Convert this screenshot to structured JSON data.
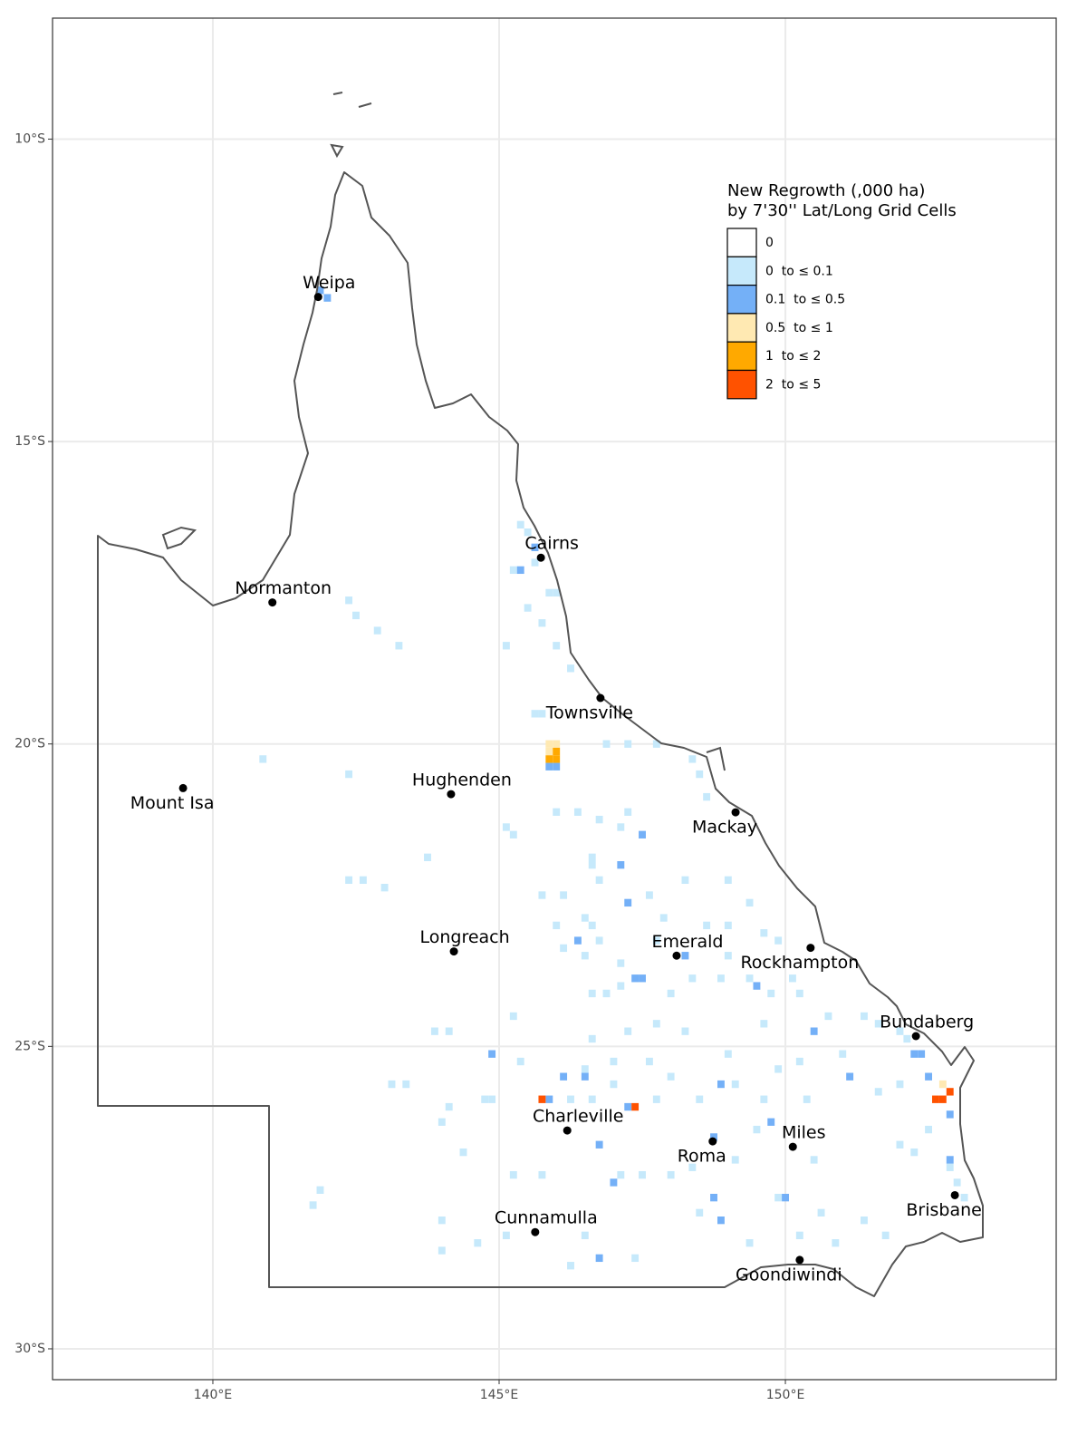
{
  "chart_data": {
    "type": "map",
    "xlim": [
      137.2,
      154.73
    ],
    "ylim": [
      -30.51,
      -8.0
    ],
    "xticks": [
      {
        "value": 140,
        "label": "140°E"
      },
      {
        "value": 145,
        "label": "145°E"
      },
      {
        "value": 150,
        "label": "150°E"
      }
    ],
    "yticks": [
      {
        "value": -10,
        "label": "10°S"
      },
      {
        "value": -15,
        "label": "15°S"
      },
      {
        "value": -20,
        "label": "20°S"
      },
      {
        "value": -25,
        "label": "25°S"
      },
      {
        "value": -30,
        "label": "30°S"
      }
    ],
    "grid": true,
    "legend": {
      "title": [
        "New Regrowth (,000 ha)",
        "by 7'30'' Lat/Long Grid Cells"
      ],
      "position": "top-right"
    },
    "series": [
      {
        "name": "0",
        "color": "#ffffff"
      },
      {
        "name": "0  to ≤ 0.1",
        "color": "#c6e9fb",
        "cells": [
          [
            145.375,
            -16.375
          ],
          [
            145.5,
            -16.5
          ],
          [
            145.25,
            -17.125
          ],
          [
            145.625,
            -17.0
          ],
          [
            145.875,
            -17.5
          ],
          [
            146.0,
            -17.5
          ],
          [
            145.5,
            -17.75
          ],
          [
            145.75,
            -18.0
          ],
          [
            145.125,
            -18.375
          ],
          [
            146.0,
            -18.375
          ],
          [
            146.25,
            -18.75
          ],
          [
            142.375,
            -17.625
          ],
          [
            142.5,
            -17.875
          ],
          [
            142.875,
            -18.125
          ],
          [
            143.25,
            -18.375
          ],
          [
            145.625,
            -19.5
          ],
          [
            145.75,
            -19.5
          ],
          [
            146.875,
            -20.0
          ],
          [
            147.25,
            -20.0
          ],
          [
            147.75,
            -20.0
          ],
          [
            148.375,
            -20.25
          ],
          [
            148.5,
            -20.5
          ],
          [
            148.625,
            -20.875
          ],
          [
            146.0,
            -21.125
          ],
          [
            146.375,
            -21.125
          ],
          [
            146.75,
            -21.25
          ],
          [
            147.25,
            -21.125
          ],
          [
            147.125,
            -21.375
          ],
          [
            145.125,
            -21.375
          ],
          [
            145.25,
            -21.5
          ],
          [
            146.625,
            -22.0
          ],
          [
            146.625,
            -21.875
          ],
          [
            146.75,
            -22.25
          ],
          [
            146.125,
            -22.5
          ],
          [
            147.625,
            -22.5
          ],
          [
            148.25,
            -22.25
          ],
          [
            149.0,
            -22.25
          ],
          [
            149.375,
            -22.625
          ],
          [
            146.0,
            -23.0
          ],
          [
            146.5,
            -22.875
          ],
          [
            146.625,
            -23.0
          ],
          [
            146.75,
            -23.25
          ],
          [
            147.875,
            -22.875
          ],
          [
            148.625,
            -23.0
          ],
          [
            149.0,
            -23.0
          ],
          [
            149.625,
            -23.125
          ],
          [
            149.875,
            -23.25
          ],
          [
            146.125,
            -23.375
          ],
          [
            146.5,
            -23.5
          ],
          [
            147.125,
            -23.625
          ],
          [
            147.75,
            -23.25
          ],
          [
            149.0,
            -23.5
          ],
          [
            149.375,
            -23.875
          ],
          [
            150.125,
            -23.875
          ],
          [
            146.625,
            -24.125
          ],
          [
            146.875,
            -24.125
          ],
          [
            147.125,
            -24.0
          ],
          [
            148.0,
            -24.125
          ],
          [
            148.375,
            -23.875
          ],
          [
            148.875,
            -23.875
          ],
          [
            149.75,
            -24.125
          ],
          [
            150.25,
            -24.125
          ],
          [
            150.75,
            -24.5
          ],
          [
            151.375,
            -24.5
          ],
          [
            151.625,
            -24.625
          ],
          [
            152.0,
            -24.75
          ],
          [
            152.125,
            -24.875
          ],
          [
            151.0,
            -25.125
          ],
          [
            146.625,
            -24.875
          ],
          [
            147.25,
            -24.75
          ],
          [
            147.75,
            -24.625
          ],
          [
            148.25,
            -24.75
          ],
          [
            149.0,
            -25.125
          ],
          [
            149.625,
            -24.625
          ],
          [
            146.5,
            -25.375
          ],
          [
            147.0,
            -25.25
          ],
          [
            147.625,
            -25.25
          ],
          [
            148.0,
            -25.5
          ],
          [
            149.125,
            -25.625
          ],
          [
            149.875,
            -25.375
          ],
          [
            150.25,
            -25.25
          ],
          [
            146.25,
            -25.875
          ],
          [
            146.625,
            -25.875
          ],
          [
            147.0,
            -25.625
          ],
          [
            147.75,
            -25.875
          ],
          [
            148.5,
            -25.875
          ],
          [
            149.625,
            -25.875
          ],
          [
            150.375,
            -25.875
          ],
          [
            151.625,
            -25.75
          ],
          [
            152.0,
            -25.625
          ],
          [
            152.5,
            -26.375
          ],
          [
            152.0,
            -26.625
          ],
          [
            152.25,
            -26.75
          ],
          [
            153.0,
            -27.25
          ],
          [
            153.125,
            -27.5
          ],
          [
            144.75,
            -25.875
          ],
          [
            144.875,
            -25.875
          ],
          [
            145.375,
            -25.25
          ],
          [
            144.125,
            -26.0
          ],
          [
            144.0,
            -26.25
          ],
          [
            143.125,
            -25.625
          ],
          [
            143.375,
            -25.625
          ],
          [
            143.875,
            -24.75
          ],
          [
            144.125,
            -24.75
          ],
          [
            145.25,
            -24.5
          ],
          [
            144.375,
            -26.75
          ],
          [
            145.25,
            -27.125
          ],
          [
            145.75,
            -27.125
          ],
          [
            147.125,
            -27.125
          ],
          [
            147.5,
            -27.125
          ],
          [
            148.0,
            -27.125
          ],
          [
            148.375,
            -27.0
          ],
          [
            149.125,
            -26.875
          ],
          [
            149.5,
            -26.375
          ],
          [
            150.5,
            -26.875
          ],
          [
            149.875,
            -27.5
          ],
          [
            150.625,
            -27.75
          ],
          [
            151.375,
            -27.875
          ],
          [
            144.0,
            -27.875
          ],
          [
            144.625,
            -28.25
          ],
          [
            145.125,
            -28.125
          ],
          [
            146.5,
            -28.125
          ],
          [
            144.0,
            -28.375
          ],
          [
            146.25,
            -28.625
          ],
          [
            147.375,
            -28.5
          ],
          [
            148.5,
            -27.75
          ],
          [
            149.375,
            -28.25
          ],
          [
            150.25,
            -28.125
          ],
          [
            150.875,
            -28.25
          ],
          [
            141.875,
            -27.375
          ],
          [
            141.75,
            -27.625
          ],
          [
            142.375,
            -22.25
          ],
          [
            142.625,
            -22.25
          ],
          [
            143.0,
            -22.375
          ],
          [
            143.75,
            -21.875
          ],
          [
            140.875,
            -20.25
          ],
          [
            142.375,
            -20.5
          ],
          [
            145.75,
            -22.5
          ],
          [
            152.875,
            -27.0
          ],
          [
            151.75,
            -28.125
          ]
        ]
      },
      {
        "name": "0.1  to ≤ 0.5",
        "color": "#74b0f7",
        "cells": [
          [
            141.875,
            -12.5
          ],
          [
            142.0,
            -12.625
          ],
          [
            145.625,
            -16.75
          ],
          [
            145.375,
            -17.125
          ],
          [
            145.875,
            -20.375
          ],
          [
            146.0,
            -20.375
          ],
          [
            147.5,
            -21.5
          ],
          [
            147.25,
            -22.625
          ],
          [
            147.125,
            -22.0
          ],
          [
            146.375,
            -23.25
          ],
          [
            148.25,
            -23.5
          ],
          [
            147.375,
            -23.875
          ],
          [
            147.5,
            -23.875
          ],
          [
            149.5,
            -24.0
          ],
          [
            150.5,
            -24.75
          ],
          [
            152.25,
            -25.125
          ],
          [
            152.375,
            -25.125
          ],
          [
            144.875,
            -25.125
          ],
          [
            145.875,
            -25.875
          ],
          [
            146.125,
            -25.5
          ],
          [
            146.5,
            -25.5
          ],
          [
            147.25,
            -26.0
          ],
          [
            148.875,
            -25.625
          ],
          [
            149.75,
            -26.25
          ],
          [
            151.125,
            -25.5
          ],
          [
            152.5,
            -25.5
          ],
          [
            152.875,
            -26.125
          ],
          [
            152.875,
            -26.875
          ],
          [
            146.75,
            -26.625
          ],
          [
            147.0,
            -27.25
          ],
          [
            148.75,
            -27.5
          ],
          [
            148.875,
            -27.875
          ],
          [
            150.0,
            -27.5
          ],
          [
            146.75,
            -28.5
          ],
          [
            148.75,
            -26.5
          ]
        ]
      },
      {
        "name": "0.5  to ≤ 1",
        "color": "#ffe9b2",
        "cells": [
          [
            145.875,
            -20.0
          ],
          [
            146.0,
            -20.0
          ],
          [
            145.875,
            -20.125
          ],
          [
            152.75,
            -25.625
          ]
        ]
      },
      {
        "name": "1  to ≤ 2",
        "color": "#ffa900",
        "cells": [
          [
            146.0,
            -20.125
          ],
          [
            146.0,
            -20.25
          ],
          [
            145.875,
            -20.25
          ]
        ]
      },
      {
        "name": "2  to ≤ 5",
        "color": "#ff5200",
        "cells": [
          [
            145.75,
            -25.875
          ],
          [
            147.375,
            -26.0
          ],
          [
            152.625,
            -25.875
          ],
          [
            152.75,
            -25.875
          ],
          [
            152.875,
            -25.75
          ]
        ]
      }
    ],
    "places": [
      {
        "name": "Weipa",
        "lon": 141.84,
        "lat": -12.61,
        "label": "above"
      },
      {
        "name": "Cairns",
        "lon": 145.73,
        "lat": -16.92,
        "label": "above"
      },
      {
        "name": "Normanton",
        "lon": 141.04,
        "lat": -17.66,
        "label": "above"
      },
      {
        "name": "Townsville",
        "lon": 146.77,
        "lat": -19.24,
        "label": "below"
      },
      {
        "name": "Mount Isa",
        "lon": 139.48,
        "lat": -20.73,
        "label": "below"
      },
      {
        "name": "Hughenden",
        "lon": 144.16,
        "lat": -20.83,
        "label": "above"
      },
      {
        "name": "Mackay",
        "lon": 149.13,
        "lat": -21.13,
        "label": "below"
      },
      {
        "name": "Longreach",
        "lon": 144.21,
        "lat": -23.43,
        "label": "above"
      },
      {
        "name": "Emerald",
        "lon": 148.1,
        "lat": -23.5,
        "label": "above"
      },
      {
        "name": "Rockhampton",
        "lon": 150.44,
        "lat": -23.37,
        "label": "below"
      },
      {
        "name": "Bundaberg",
        "lon": 152.28,
        "lat": -24.83,
        "label": "above"
      },
      {
        "name": "Charleville",
        "lon": 146.19,
        "lat": -26.39,
        "label": "above"
      },
      {
        "name": "Miles",
        "lon": 150.13,
        "lat": -26.66,
        "label": "above"
      },
      {
        "name": "Roma",
        "lon": 148.73,
        "lat": -26.57,
        "label": "below"
      },
      {
        "name": "Brisbane",
        "lon": 152.96,
        "lat": -27.46,
        "label": "below"
      },
      {
        "name": "Cunnamulla",
        "lon": 145.63,
        "lat": -28.07,
        "label": "above"
      },
      {
        "name": "Goondiwindi",
        "lon": 150.25,
        "lat": -28.53,
        "label": "below"
      }
    ]
  }
}
